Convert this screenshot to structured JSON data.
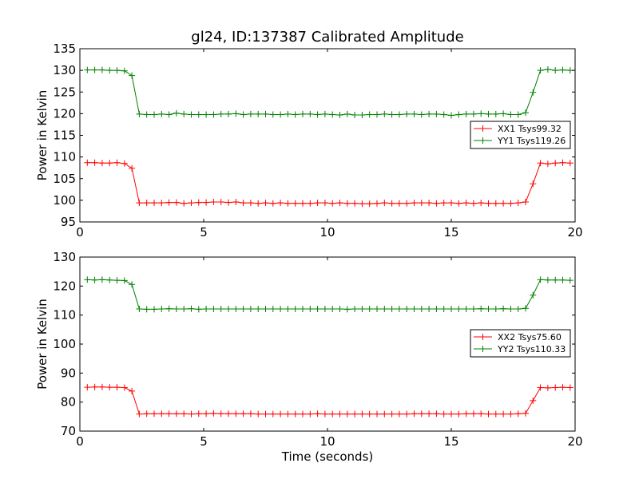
{
  "chart_data": {
    "title": "gl24, ID:137387 Calibrated Amplitude",
    "xlabel": "Time (seconds)",
    "x": [
      0.3,
      0.6,
      0.9,
      1.2,
      1.5,
      1.8,
      2.1,
      2.4,
      2.7,
      3.0,
      3.3,
      3.6,
      3.9,
      4.2,
      4.5,
      4.8,
      5.1,
      5.4,
      5.7,
      6.0,
      6.3,
      6.6,
      6.9,
      7.2,
      7.5,
      7.8,
      8.1,
      8.4,
      8.7,
      9.0,
      9.3,
      9.6,
      9.9,
      10.2,
      10.5,
      10.8,
      11.1,
      11.4,
      11.7,
      12.0,
      12.3,
      12.6,
      12.9,
      13.2,
      13.5,
      13.8,
      14.1,
      14.4,
      14.7,
      15.0,
      15.3,
      15.6,
      15.9,
      16.2,
      16.5,
      16.8,
      17.1,
      17.4,
      17.7,
      18.0,
      18.3,
      18.6,
      18.9,
      19.2,
      19.5,
      19.8
    ],
    "plots": [
      {
        "type": "line",
        "ylabel": "Power in Kelvin",
        "xlim": [
          0,
          20
        ],
        "ylim": [
          95,
          135
        ],
        "xticks": [
          0,
          5,
          10,
          15,
          20
        ],
        "yticks": [
          95,
          100,
          105,
          110,
          115,
          120,
          125,
          130,
          135
        ],
        "legend": "center-right",
        "series": [
          {
            "name": "XX1 Tsys99.32",
            "color": "#ff0000",
            "values": [
              108.7,
              108.7,
              108.6,
              108.6,
              108.7,
              108.5,
              107.4,
              99.4,
              99.4,
              99.4,
              99.4,
              99.5,
              99.5,
              99.3,
              99.4,
              99.5,
              99.5,
              99.6,
              99.6,
              99.5,
              99.6,
              99.4,
              99.4,
              99.3,
              99.4,
              99.3,
              99.4,
              99.3,
              99.3,
              99.3,
              99.3,
              99.4,
              99.4,
              99.3,
              99.4,
              99.3,
              99.3,
              99.2,
              99.2,
              99.3,
              99.4,
              99.3,
              99.3,
              99.3,
              99.4,
              99.4,
              99.4,
              99.3,
              99.4,
              99.4,
              99.3,
              99.4,
              99.3,
              99.4,
              99.3,
              99.3,
              99.3,
              99.3,
              99.4,
              99.6,
              103.8,
              108.6,
              108.4,
              108.6,
              108.7,
              108.6
            ]
          },
          {
            "name": "YY1 Tsys119.26",
            "color": "#008000",
            "values": [
              130.1,
              130.1,
              130.1,
              130.0,
              130.0,
              129.9,
              128.8,
              119.9,
              119.8,
              119.8,
              119.9,
              119.8,
              120.1,
              119.9,
              119.8,
              119.8,
              119.8,
              119.8,
              119.9,
              119.9,
              120.0,
              119.8,
              119.9,
              119.9,
              119.9,
              119.8,
              119.8,
              119.9,
              119.8,
              119.9,
              119.9,
              119.8,
              119.9,
              119.8,
              119.7,
              119.9,
              119.7,
              119.7,
              119.8,
              119.8,
              119.9,
              119.8,
              119.8,
              119.9,
              119.9,
              119.8,
              119.9,
              119.9,
              119.8,
              119.6,
              119.8,
              119.9,
              119.9,
              120.0,
              119.9,
              119.9,
              120.0,
              119.8,
              119.8,
              120.2,
              124.9,
              130.0,
              130.2,
              130.0,
              130.1,
              130.0
            ]
          }
        ]
      },
      {
        "type": "line",
        "ylabel": "Power in Kelvin",
        "xlim": [
          0,
          20
        ],
        "ylim": [
          70,
          130
        ],
        "xticks": [
          0,
          5,
          10,
          15,
          20
        ],
        "yticks": [
          70,
          80,
          90,
          100,
          110,
          120,
          130
        ],
        "legend": "center-right",
        "series": [
          {
            "name": "XX2 Tsys75.60",
            "color": "#ff0000",
            "values": [
              85.1,
              85.2,
              85.2,
              85.1,
              85.1,
              85.0,
              83.8,
              75.9,
              76.0,
              76.0,
              76.0,
              76.0,
              76.0,
              76.0,
              75.9,
              76.0,
              76.0,
              76.1,
              76.0,
              76.0,
              76.0,
              76.0,
              76.0,
              75.9,
              75.9,
              75.9,
              75.9,
              75.9,
              75.9,
              75.9,
              75.9,
              76.0,
              75.9,
              75.9,
              75.9,
              75.9,
              75.9,
              75.9,
              75.9,
              75.9,
              75.9,
              75.9,
              75.9,
              75.9,
              76.0,
              76.0,
              76.0,
              76.0,
              75.9,
              75.9,
              75.9,
              76.0,
              76.0,
              76.0,
              75.9,
              75.9,
              75.9,
              75.9,
              76.0,
              76.1,
              80.5,
              85.0,
              84.9,
              85.0,
              85.1,
              85.0
            ]
          },
          {
            "name": "YY2 Tsys110.33",
            "color": "#008000",
            "values": [
              122.2,
              122.1,
              122.2,
              122.1,
              122.0,
              121.9,
              120.6,
              112.1,
              112.0,
              112.0,
              112.1,
              112.2,
              112.1,
              112.1,
              112.2,
              112.0,
              112.1,
              112.1,
              112.1,
              112.1,
              112.1,
              112.1,
              112.1,
              112.1,
              112.1,
              112.1,
              112.1,
              112.1,
              112.1,
              112.1,
              112.1,
              112.1,
              112.1,
              112.1,
              112.1,
              112.0,
              112.1,
              112.1,
              112.1,
              112.1,
              112.1,
              112.1,
              112.1,
              112.1,
              112.1,
              112.1,
              112.1,
              112.1,
              112.1,
              112.1,
              112.1,
              112.1,
              112.1,
              112.2,
              112.1,
              112.1,
              112.2,
              112.1,
              112.1,
              112.3,
              116.9,
              122.2,
              122.1,
              122.1,
              122.1,
              122.0
            ]
          }
        ]
      }
    ]
  }
}
